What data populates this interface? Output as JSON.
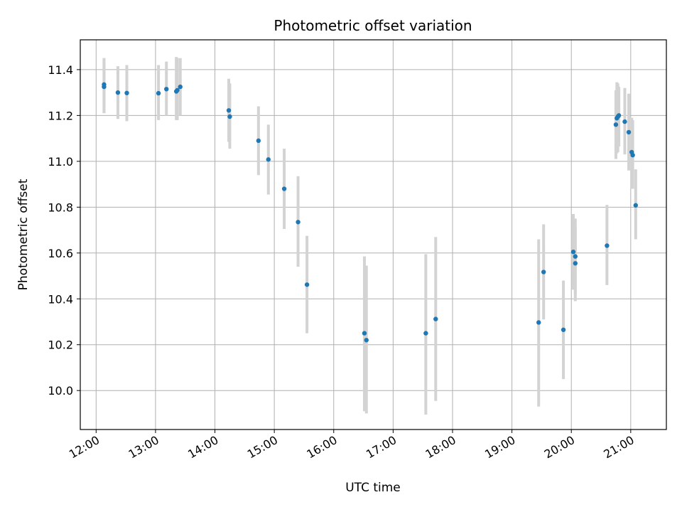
{
  "chart_data": {
    "type": "scatter",
    "title": "Photometric offset variation",
    "xlabel": "UTC time",
    "ylabel": "Photometric offset",
    "xlim": [
      "11:44",
      "21:36"
    ],
    "ylim": [
      9.83,
      11.53
    ],
    "x_ticks": [
      "12:00",
      "13:00",
      "14:00",
      "15:00",
      "16:00",
      "17:00",
      "18:00",
      "19:00",
      "20:00",
      "21:00"
    ],
    "y_ticks": [
      "10.0",
      "10.2",
      "10.4",
      "10.6",
      "10.8",
      "11.0",
      "11.2",
      "11.4"
    ],
    "grid": true,
    "marker_color": "#1f77b4",
    "errorbar_color": "#d3d3d3",
    "points": [
      {
        "t": "12:08",
        "y": 11.335,
        "lo": 11.21,
        "hi": 11.45
      },
      {
        "t": "12:08",
        "y": 11.325,
        "lo": 11.21,
        "hi": 11.45
      },
      {
        "t": "12:22",
        "y": 11.3,
        "lo": 11.185,
        "hi": 11.415
      },
      {
        "t": "12:31",
        "y": 11.298,
        "lo": 11.175,
        "hi": 11.42
      },
      {
        "t": "13:03",
        "y": 11.297,
        "lo": 11.18,
        "hi": 11.42
      },
      {
        "t": "13:11",
        "y": 11.315,
        "lo": 11.2,
        "hi": 11.435
      },
      {
        "t": "13:21",
        "y": 11.305,
        "lo": 11.18,
        "hi": 11.455
      },
      {
        "t": "13:22",
        "y": 11.31,
        "lo": 11.18,
        "hi": 11.45
      },
      {
        "t": "13:25",
        "y": 11.325,
        "lo": 11.2,
        "hi": 11.45
      },
      {
        "t": "14:14",
        "y": 11.222,
        "lo": 11.085,
        "hi": 11.36
      },
      {
        "t": "14:15",
        "y": 11.195,
        "lo": 11.055,
        "hi": 11.34
      },
      {
        "t": "14:44",
        "y": 11.09,
        "lo": 10.94,
        "hi": 11.24
      },
      {
        "t": "14:54",
        "y": 11.008,
        "lo": 10.855,
        "hi": 11.16
      },
      {
        "t": "15:10",
        "y": 10.88,
        "lo": 10.705,
        "hi": 11.055
      },
      {
        "t": "15:24",
        "y": 10.735,
        "lo": 10.54,
        "hi": 10.935
      },
      {
        "t": "15:33",
        "y": 10.462,
        "lo": 10.25,
        "hi": 10.675
      },
      {
        "t": "16:31",
        "y": 10.25,
        "lo": 9.91,
        "hi": 10.585
      },
      {
        "t": "16:33",
        "y": 10.22,
        "lo": 9.9,
        "hi": 10.545
      },
      {
        "t": "17:33",
        "y": 10.25,
        "lo": 9.895,
        "hi": 10.595
      },
      {
        "t": "17:43",
        "y": 10.312,
        "lo": 9.955,
        "hi": 10.67
      },
      {
        "t": "19:27",
        "y": 10.297,
        "lo": 9.93,
        "hi": 10.66
      },
      {
        "t": "19:32",
        "y": 10.517,
        "lo": 10.31,
        "hi": 10.725
      },
      {
        "t": "19:52",
        "y": 10.265,
        "lo": 10.05,
        "hi": 10.48
      },
      {
        "t": "20:02",
        "y": 10.605,
        "lo": 10.44,
        "hi": 10.77
      },
      {
        "t": "20:04",
        "y": 10.555,
        "lo": 10.39,
        "hi": 10.715
      },
      {
        "t": "20:04",
        "y": 10.585,
        "lo": 10.42,
        "hi": 10.75
      },
      {
        "t": "20:36",
        "y": 10.632,
        "lo": 10.46,
        "hi": 10.81
      },
      {
        "t": "20:45",
        "y": 11.16,
        "lo": 11.01,
        "hi": 11.31
      },
      {
        "t": "20:46",
        "y": 11.188,
        "lo": 11.035,
        "hi": 11.345
      },
      {
        "t": "20:47",
        "y": 11.195,
        "lo": 11.04,
        "hi": 11.34
      },
      {
        "t": "20:48",
        "y": 11.2,
        "lo": 11.065,
        "hi": 11.325
      },
      {
        "t": "20:54",
        "y": 11.173,
        "lo": 11.03,
        "hi": 11.32
      },
      {
        "t": "20:58",
        "y": 11.127,
        "lo": 10.96,
        "hi": 11.295
      },
      {
        "t": "21:01",
        "y": 11.04,
        "lo": 10.88,
        "hi": 11.19
      },
      {
        "t": "21:02",
        "y": 11.027,
        "lo": 10.88,
        "hi": 11.18
      },
      {
        "t": "21:05",
        "y": 10.808,
        "lo": 10.66,
        "hi": 10.965
      }
    ]
  }
}
